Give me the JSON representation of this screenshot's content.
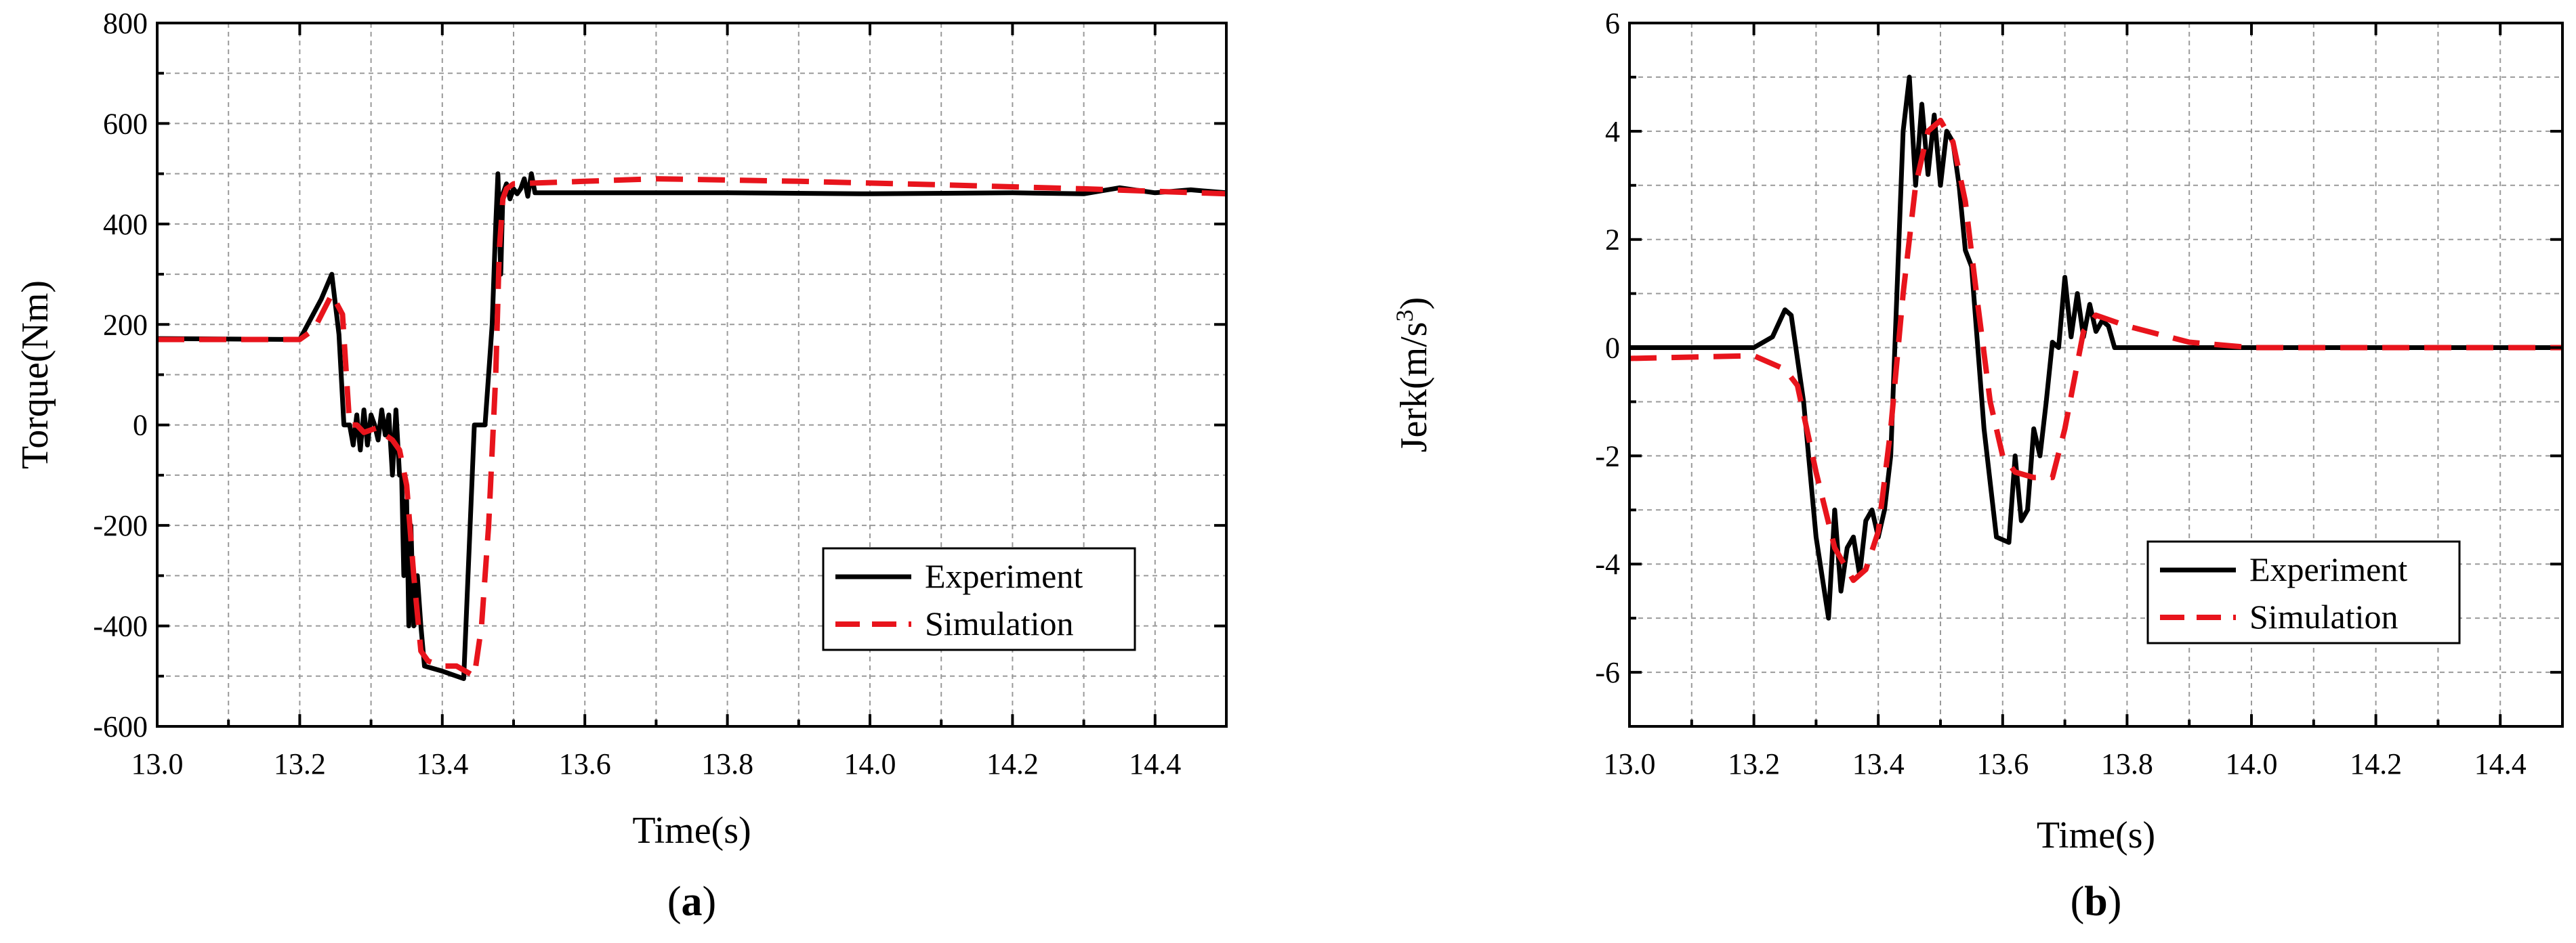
{
  "chart_data": [
    {
      "type": "line",
      "panel_label": "a",
      "xlabel": "Time(s)",
      "ylabel": "Torque(Nm)",
      "xlim": [
        13.0,
        14.5
      ],
      "ylim": [
        -600,
        800
      ],
      "xticks": [
        13.0,
        13.2,
        13.4,
        13.6,
        13.8,
        14.0,
        14.2,
        14.4
      ],
      "xtick_labels": [
        "13.0",
        "13.2",
        "13.4",
        "13.6",
        "13.8",
        "14.0",
        "14.2",
        "14.4"
      ],
      "yticks": [
        -600,
        -400,
        -200,
        0,
        200,
        400,
        600,
        800
      ],
      "ytick_labels": [
        "-600",
        "-400",
        "-200",
        "0",
        "200",
        "400",
        "600",
        "800"
      ],
      "grid": true,
      "legend": "bottom-right",
      "series": [
        {
          "name": "Experiment",
          "color": "#000000",
          "style": "solid",
          "x": [
            13.0,
            13.2,
            13.23,
            13.245,
            13.255,
            13.262,
            13.27,
            13.275,
            13.28,
            13.285,
            13.29,
            13.295,
            13.3,
            13.305,
            13.31,
            13.315,
            13.32,
            13.325,
            13.33,
            13.335,
            13.34,
            13.343,
            13.346,
            13.35,
            13.353,
            13.356,
            13.36,
            13.365,
            13.37,
            13.375,
            13.4,
            13.43,
            13.445,
            13.46,
            13.47,
            13.475,
            13.478,
            13.482,
            13.485,
            13.49,
            13.495,
            13.5,
            13.505,
            13.51,
            13.515,
            13.52,
            13.525,
            13.53,
            13.6,
            13.8,
            14.0,
            14.2,
            14.3,
            14.35,
            14.4,
            14.45,
            14.5
          ],
          "y": [
            172,
            170,
            250,
            300,
            180,
            0,
            0,
            -40,
            20,
            -50,
            30,
            -40,
            20,
            0,
            -30,
            30,
            -20,
            20,
            -100,
            30,
            -100,
            -100,
            -300,
            -150,
            -400,
            -200,
            -400,
            -300,
            -400,
            -480,
            -490,
            -505,
            0,
            0,
            200,
            400,
            500,
            300,
            460,
            480,
            450,
            470,
            460,
            470,
            490,
            455,
            500,
            462,
            462,
            462,
            460,
            462,
            460,
            472,
            462,
            468,
            462
          ]
        },
        {
          "name": "Simulation",
          "color": "#e8141c",
          "style": "dashed",
          "x": [
            13.0,
            13.2,
            13.22,
            13.245,
            13.26,
            13.27,
            13.28,
            13.29,
            13.3,
            13.31,
            13.32,
            13.33,
            13.34,
            13.35,
            13.36,
            13.37,
            13.38,
            13.4,
            13.42,
            13.445,
            13.455,
            13.465,
            13.475,
            13.48,
            13.485,
            13.49,
            13.5,
            13.6,
            13.7,
            13.9,
            14.1,
            14.3,
            14.4,
            14.5
          ],
          "y": [
            170,
            170,
            190,
            260,
            220,
            0,
            0,
            -15,
            -10,
            -5,
            -20,
            -30,
            -50,
            -120,
            -300,
            -450,
            -470,
            -480,
            -480,
            -500,
            -400,
            -200,
            100,
            350,
            450,
            470,
            480,
            485,
            490,
            485,
            478,
            470,
            465,
            460
          ]
        }
      ]
    },
    {
      "type": "line",
      "panel_label": "b",
      "xlabel": "Time(s)",
      "ylabel_main": "Jerk(m/s",
      "ylabel_sup": "3",
      "ylabel_close": ")",
      "xlim": [
        13.0,
        14.5
      ],
      "ylim": [
        -7,
        6
      ],
      "xticks": [
        13.0,
        13.2,
        13.4,
        13.6,
        13.8,
        14.0,
        14.2,
        14.4
      ],
      "xtick_labels": [
        "13.0",
        "13.2",
        "13.4",
        "13.6",
        "13.8",
        "14.0",
        "14.2",
        "14.4"
      ],
      "yticks": [
        -6,
        -4,
        -2,
        0,
        2,
        4,
        6
      ],
      "ytick_labels": [
        "-6",
        "-4",
        "-2",
        "0",
        "2",
        "4",
        "6"
      ],
      "grid": true,
      "legend": "bottom-right",
      "series": [
        {
          "name": "Experiment",
          "color": "#000000",
          "style": "solid",
          "x": [
            13.0,
            13.2,
            13.23,
            13.25,
            13.26,
            13.28,
            13.3,
            13.32,
            13.33,
            13.34,
            13.35,
            13.36,
            13.37,
            13.38,
            13.39,
            13.4,
            13.41,
            13.42,
            13.43,
            13.44,
            13.45,
            13.46,
            13.47,
            13.48,
            13.49,
            13.5,
            13.51,
            13.52,
            13.53,
            13.54,
            13.55,
            13.57,
            13.59,
            13.61,
            13.62,
            13.63,
            13.64,
            13.65,
            13.66,
            13.67,
            13.68,
            13.69,
            13.7,
            13.71,
            13.72,
            13.73,
            13.74,
            13.75,
            13.76,
            13.77,
            13.78,
            14.0,
            14.5
          ],
          "y": [
            0,
            0,
            0.2,
            0.7,
            0.6,
            -1,
            -3.5,
            -5,
            -3,
            -4.5,
            -3.7,
            -3.5,
            -4.2,
            -3.2,
            -3,
            -3.5,
            -3,
            -2,
            1,
            4,
            5,
            3,
            4.5,
            3.2,
            4.3,
            3,
            4,
            3.8,
            3,
            1.8,
            1.5,
            -1.5,
            -3.5,
            -3.6,
            -2,
            -3.2,
            -3,
            -1.5,
            -2,
            -1,
            0.1,
            0,
            1.3,
            0.2,
            1,
            0.2,
            0.8,
            0.3,
            0.5,
            0.4,
            0,
            0,
            0
          ]
        },
        {
          "name": "Simulation",
          "color": "#e8141c",
          "style": "dashed",
          "x": [
            13.0,
            13.2,
            13.25,
            13.27,
            13.3,
            13.33,
            13.36,
            13.38,
            13.4,
            13.42,
            13.44,
            13.46,
            13.48,
            13.5,
            13.52,
            13.54,
            13.56,
            13.58,
            13.6,
            13.62,
            13.65,
            13.68,
            13.7,
            13.73,
            13.75,
            13.8,
            13.9,
            14.0,
            14.5
          ],
          "y": [
            -0.2,
            -0.15,
            -0.4,
            -0.7,
            -2.3,
            -3.7,
            -4.3,
            -4.1,
            -3.4,
            -1.5,
            1.0,
            3.0,
            4.0,
            4.2,
            3.8,
            2.7,
            0.8,
            -1.0,
            -2.0,
            -2.3,
            -2.4,
            -2.4,
            -1.5,
            0.3,
            0.6,
            0.4,
            0.1,
            0,
            0
          ]
        }
      ]
    }
  ]
}
